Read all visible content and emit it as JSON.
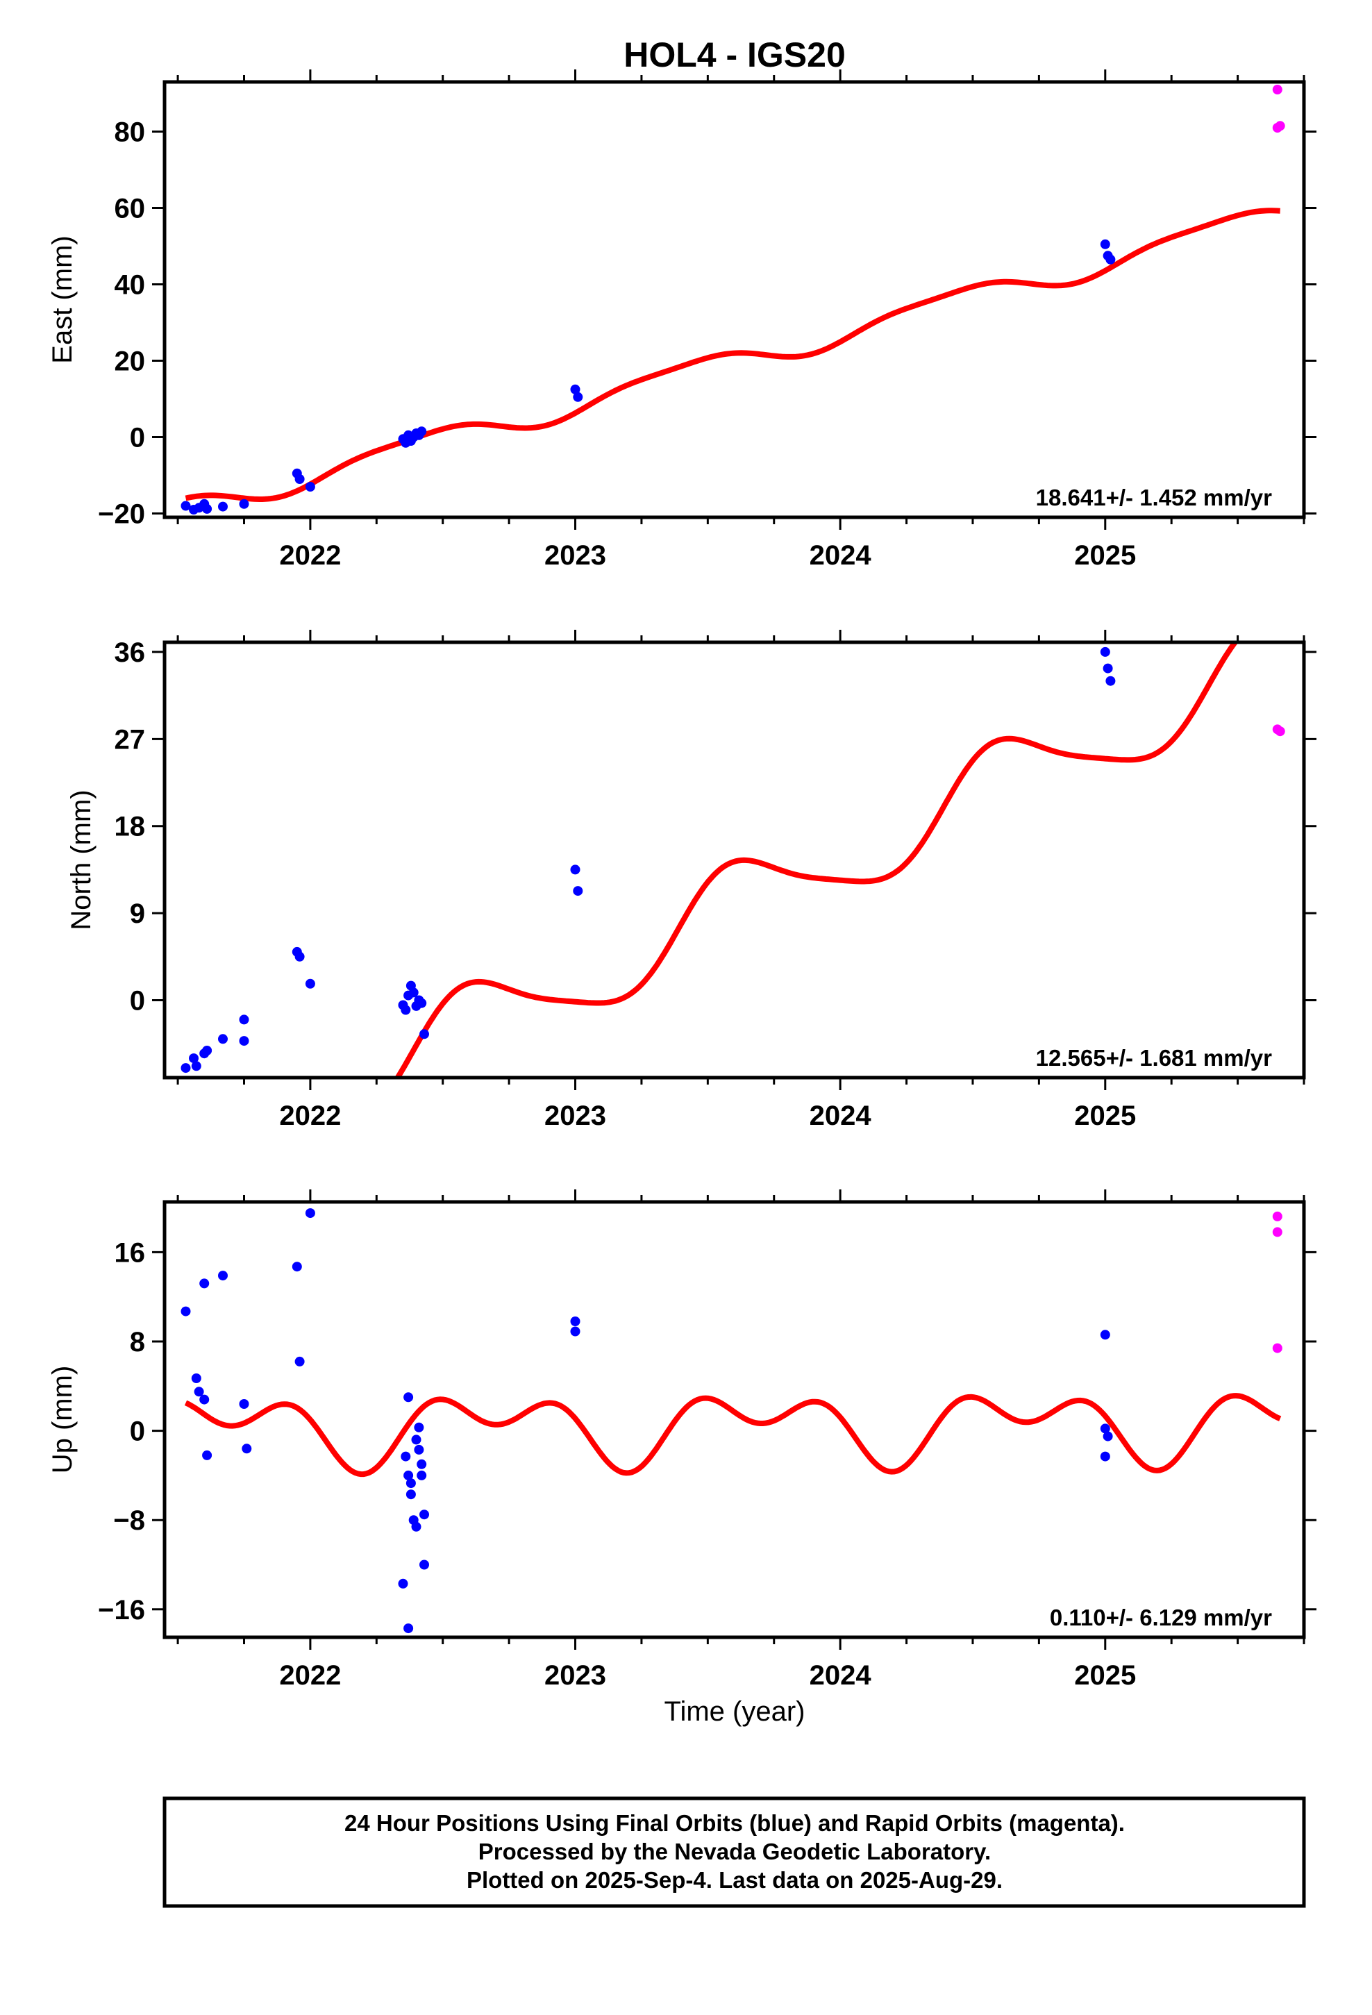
{
  "chart_data": {
    "type": "scatter",
    "title": "HOL4 - IGS20",
    "xlabel": "Time (year)",
    "xlim": [
      2021.45,
      2025.75
    ],
    "xticks": [
      {
        "value": 2022,
        "label": "2022"
      },
      {
        "value": 2023,
        "label": "2023"
      },
      {
        "value": 2024,
        "label": "2024"
      },
      {
        "value": 2025,
        "label": "2025"
      }
    ],
    "colors": {
      "final": "#0000ff",
      "rapid": "#ff00ff",
      "model": "#ff0000"
    },
    "panels": [
      {
        "id": "east",
        "ylabel": "East (mm)",
        "ylim": [
          -21,
          93
        ],
        "yticks": [
          {
            "value": -20,
            "label": "−20"
          },
          {
            "value": 0,
            "label": "0"
          },
          {
            "value": 20,
            "label": "20"
          },
          {
            "value": 40,
            "label": "40"
          },
          {
            "value": 60,
            "label": "60"
          },
          {
            "value": 80,
            "label": "80"
          }
        ],
        "rate_text": "18.641+/- 1.452 mm/yr",
        "model": {
          "t0": 2021.53,
          "y0": -16,
          "rate": 18.641,
          "annual_amp": 3,
          "annual_phase": 2.3,
          "semi_amp": 0.8,
          "semi_phase": 0.4
        },
        "final_points": [
          [
            2021.53,
            -18
          ],
          [
            2021.56,
            -19
          ],
          [
            2021.58,
            -18.5
          ],
          [
            2021.6,
            -17.5
          ],
          [
            2021.61,
            -18.8
          ],
          [
            2021.67,
            -18.2
          ],
          [
            2021.75,
            -17.5
          ],
          [
            2021.95,
            -9.5
          ],
          [
            2021.96,
            -11
          ],
          [
            2022.0,
            -13
          ],
          [
            2022.35,
            -0.5
          ],
          [
            2022.36,
            -1.5
          ],
          [
            2022.37,
            0.5
          ],
          [
            2022.38,
            -1
          ],
          [
            2022.39,
            0
          ],
          [
            2022.4,
            1
          ],
          [
            2022.41,
            0.5
          ],
          [
            2022.42,
            1.5
          ],
          [
            2023.0,
            12.5
          ],
          [
            2023.01,
            10.5
          ],
          [
            2025.0,
            50.5
          ],
          [
            2025.01,
            47.5
          ],
          [
            2025.02,
            46.5
          ]
        ],
        "rapid_points": [
          [
            2025.65,
            91
          ],
          [
            2025.65,
            81
          ],
          [
            2025.66,
            81.5
          ]
        ]
      },
      {
        "id": "north",
        "ylabel": "North (mm)",
        "ylim": [
          -8,
          37
        ],
        "yticks": [
          {
            "value": 0,
            "label": "0"
          },
          {
            "value": 9,
            "label": "9"
          },
          {
            "value": 18,
            "label": "18"
          },
          {
            "value": 27,
            "label": "27"
          },
          {
            "value": 36,
            "label": "36"
          }
        ],
        "rate_text": "12.565+/- 1.681 mm/yr",
        "model": {
          "t0": 2021.53,
          "y0": -12,
          "rate": 12.565,
          "annual_amp": 4.2,
          "annual_phase": 1.0,
          "semi_amp": 0.8,
          "semi_phase": 1.6
        },
        "final_points": [
          [
            2021.53,
            -7
          ],
          [
            2021.56,
            -6
          ],
          [
            2021.57,
            -6.8
          ],
          [
            2021.6,
            -5.5
          ],
          [
            2021.61,
            -5.2
          ],
          [
            2021.67,
            -4
          ],
          [
            2021.75,
            -2
          ],
          [
            2021.75,
            -4.2
          ],
          [
            2021.95,
            5
          ],
          [
            2021.96,
            4.5
          ],
          [
            2022.0,
            1.7
          ],
          [
            2022.35,
            -0.5
          ],
          [
            2022.36,
            -1
          ],
          [
            2022.37,
            0.5
          ],
          [
            2022.38,
            1.5
          ],
          [
            2022.39,
            0.8
          ],
          [
            2022.4,
            -0.6
          ],
          [
            2022.41,
            0
          ],
          [
            2022.42,
            -0.3
          ],
          [
            2022.43,
            -3.5
          ],
          [
            2023.0,
            13.5
          ],
          [
            2023.01,
            11.3
          ],
          [
            2025.0,
            36
          ],
          [
            2025.01,
            34.3
          ],
          [
            2025.02,
            33
          ]
        ],
        "rapid_points": [
          [
            2025.65,
            28
          ],
          [
            2025.66,
            27.8
          ]
        ]
      },
      {
        "id": "up",
        "ylabel": "Up (mm)",
        "ylim": [
          -18.5,
          20.5
        ],
        "yticks": [
          {
            "value": -16,
            "label": "−16"
          },
          {
            "value": -8,
            "label": "−8"
          },
          {
            "value": 0,
            "label": "0"
          },
          {
            "value": 8,
            "label": "8"
          },
          {
            "value": 16,
            "label": "16"
          }
        ],
        "rate_text": "0.110+/- 6.129 mm/yr",
        "model": {
          "t0": 2021.53,
          "y0": 2.5,
          "rate": 0.11,
          "annual_amp": 2.2,
          "annual_phase": 0.6,
          "semi_amp": 2.0,
          "semi_phase": 2.6
        },
        "final_points": [
          [
            2021.53,
            10.7
          ],
          [
            2021.57,
            4.7
          ],
          [
            2021.58,
            3.5
          ],
          [
            2021.6,
            13.2
          ],
          [
            2021.6,
            2.8
          ],
          [
            2021.61,
            -2.2
          ],
          [
            2021.67,
            13.9
          ],
          [
            2021.75,
            2.4
          ],
          [
            2021.76,
            -1.6
          ],
          [
            2021.95,
            14.7
          ],
          [
            2021.96,
            6.2
          ],
          [
            2022.0,
            19.5
          ],
          [
            2022.35,
            -13.7
          ],
          [
            2022.36,
            -2.3
          ],
          [
            2022.37,
            -4
          ],
          [
            2022.37,
            3
          ],
          [
            2022.38,
            -4.7
          ],
          [
            2022.38,
            -5.7
          ],
          [
            2022.39,
            -8
          ],
          [
            2022.4,
            -8.6
          ],
          [
            2022.4,
            -0.8
          ],
          [
            2022.41,
            0.3
          ],
          [
            2022.41,
            -1.7
          ],
          [
            2022.42,
            -3
          ],
          [
            2022.42,
            -4
          ],
          [
            2022.43,
            -7.5
          ],
          [
            2022.43,
            -12
          ],
          [
            2022.37,
            -17.7
          ],
          [
            2023.0,
            9.8
          ],
          [
            2023.0,
            8.9
          ],
          [
            2025.0,
            8.6
          ],
          [
            2025.0,
            0.2
          ],
          [
            2025.01,
            -0.5
          ],
          [
            2025.0,
            -2.3
          ]
        ],
        "rapid_points": [
          [
            2025.65,
            19.2
          ],
          [
            2025.65,
            17.8
          ],
          [
            2025.65,
            7.4
          ]
        ]
      }
    ]
  },
  "footer": {
    "line1": "24 Hour Positions Using Final Orbits (blue) and Rapid Orbits (magenta).",
    "line2": "Processed by the Nevada Geodetic Laboratory.",
    "line3": "Plotted on 2025-Sep-4. Last data on 2025-Aug-29."
  }
}
